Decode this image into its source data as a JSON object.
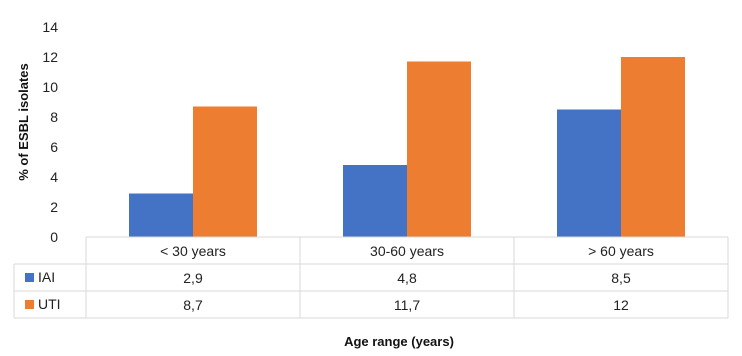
{
  "chart_data": {
    "type": "bar",
    "title": "",
    "xlabel": "Age range (years)",
    "ylabel": "% of ESBL isolates",
    "ylim": [
      0,
      14
    ],
    "yticks": [
      "0",
      "2",
      "4",
      "6",
      "8",
      "10",
      "12",
      "14"
    ],
    "categories": [
      "< 30 years",
      "30-60 years",
      "> 60 years"
    ],
    "series": [
      {
        "name": "IAI",
        "color": "#4472C4",
        "values": [
          2.9,
          4.8,
          8.5
        ],
        "labels": [
          "2,9",
          "4,8",
          "8,5"
        ]
      },
      {
        "name": "UTI",
        "color": "#ED7D31",
        "values": [
          8.7,
          11.7,
          12
        ],
        "labels": [
          "8,7",
          "11,7",
          "12"
        ]
      }
    ],
    "grid": false,
    "legend": "data-table"
  }
}
